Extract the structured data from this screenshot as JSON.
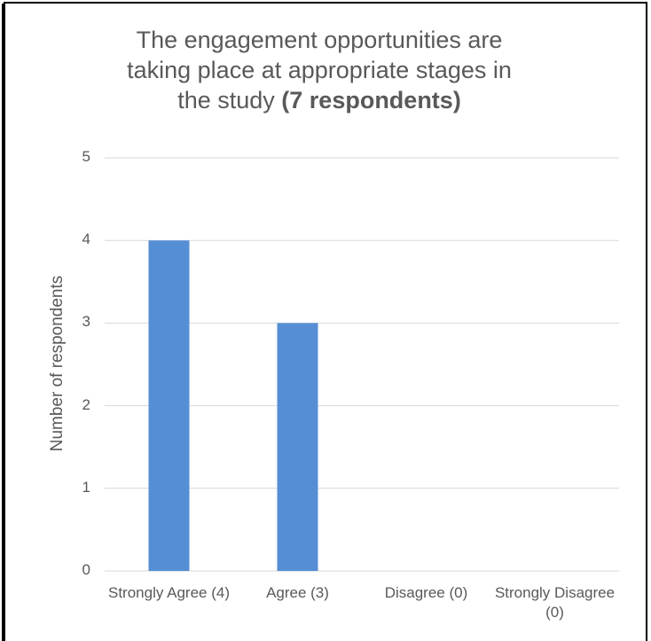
{
  "chart_data": {
    "type": "bar",
    "title": "The engagement opportunities are taking place at appropriate stages in the study",
    "title_bold": "(7 respondents)",
    "y_label": "Number of respondents",
    "categories": [
      "Strongly Agree (4)",
      "Agree (3)",
      "Disagree (0)",
      "Strongly Disagree (0)"
    ],
    "values": [
      4,
      3,
      0,
      0
    ],
    "color": "#558ed5",
    "ylim": [
      0,
      5
    ],
    "yticks": [
      0,
      1,
      2,
      3,
      4,
      5
    ],
    "grid": true
  }
}
